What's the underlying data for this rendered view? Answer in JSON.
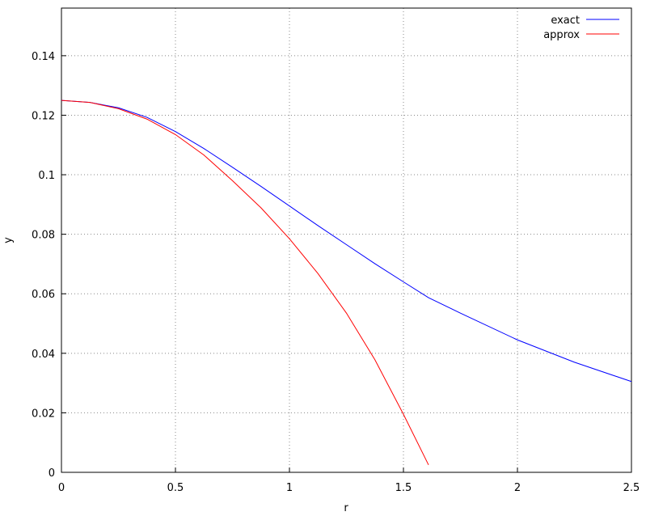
{
  "chart_data": {
    "type": "line",
    "xlabel": "r",
    "ylabel": "y",
    "x": [
      0,
      0.125,
      0.25,
      0.375,
      0.5,
      0.625,
      0.75,
      0.875,
      1,
      1.125,
      1.25,
      1.375,
      1.5,
      1.61,
      1.75,
      2,
      2.25,
      2.5
    ],
    "series": [
      {
        "name": "exact",
        "color": "#0000ff",
        "values": [
          0.125,
          0.1243,
          0.1225,
          0.1193,
          0.1145,
          0.1088,
          0.1025,
          0.0961,
          0.0895,
          0.0829,
          0.0765,
          0.0701,
          0.064,
          0.0587,
          0.0535,
          0.0445,
          0.037,
          0.0305
        ]
      },
      {
        "name": "approx",
        "color": "#ff0000",
        "values": [
          0.125,
          0.1243,
          0.1222,
          0.1187,
          0.1135,
          0.1066,
          0.098,
          0.0889,
          0.0785,
          0.0668,
          0.0535,
          0.0378,
          0.0195,
          0.0025,
          null,
          null,
          null,
          null
        ]
      }
    ],
    "xlim": [
      0,
      2.5
    ],
    "ylim": [
      0,
      0.156
    ],
    "xticks": [
      0,
      0.5,
      1,
      1.5,
      2,
      2.5
    ],
    "yticks": [
      0,
      0.02,
      0.04,
      0.06,
      0.08,
      0.1,
      0.12,
      0.14
    ],
    "grid": true,
    "legend": "top-right"
  }
}
